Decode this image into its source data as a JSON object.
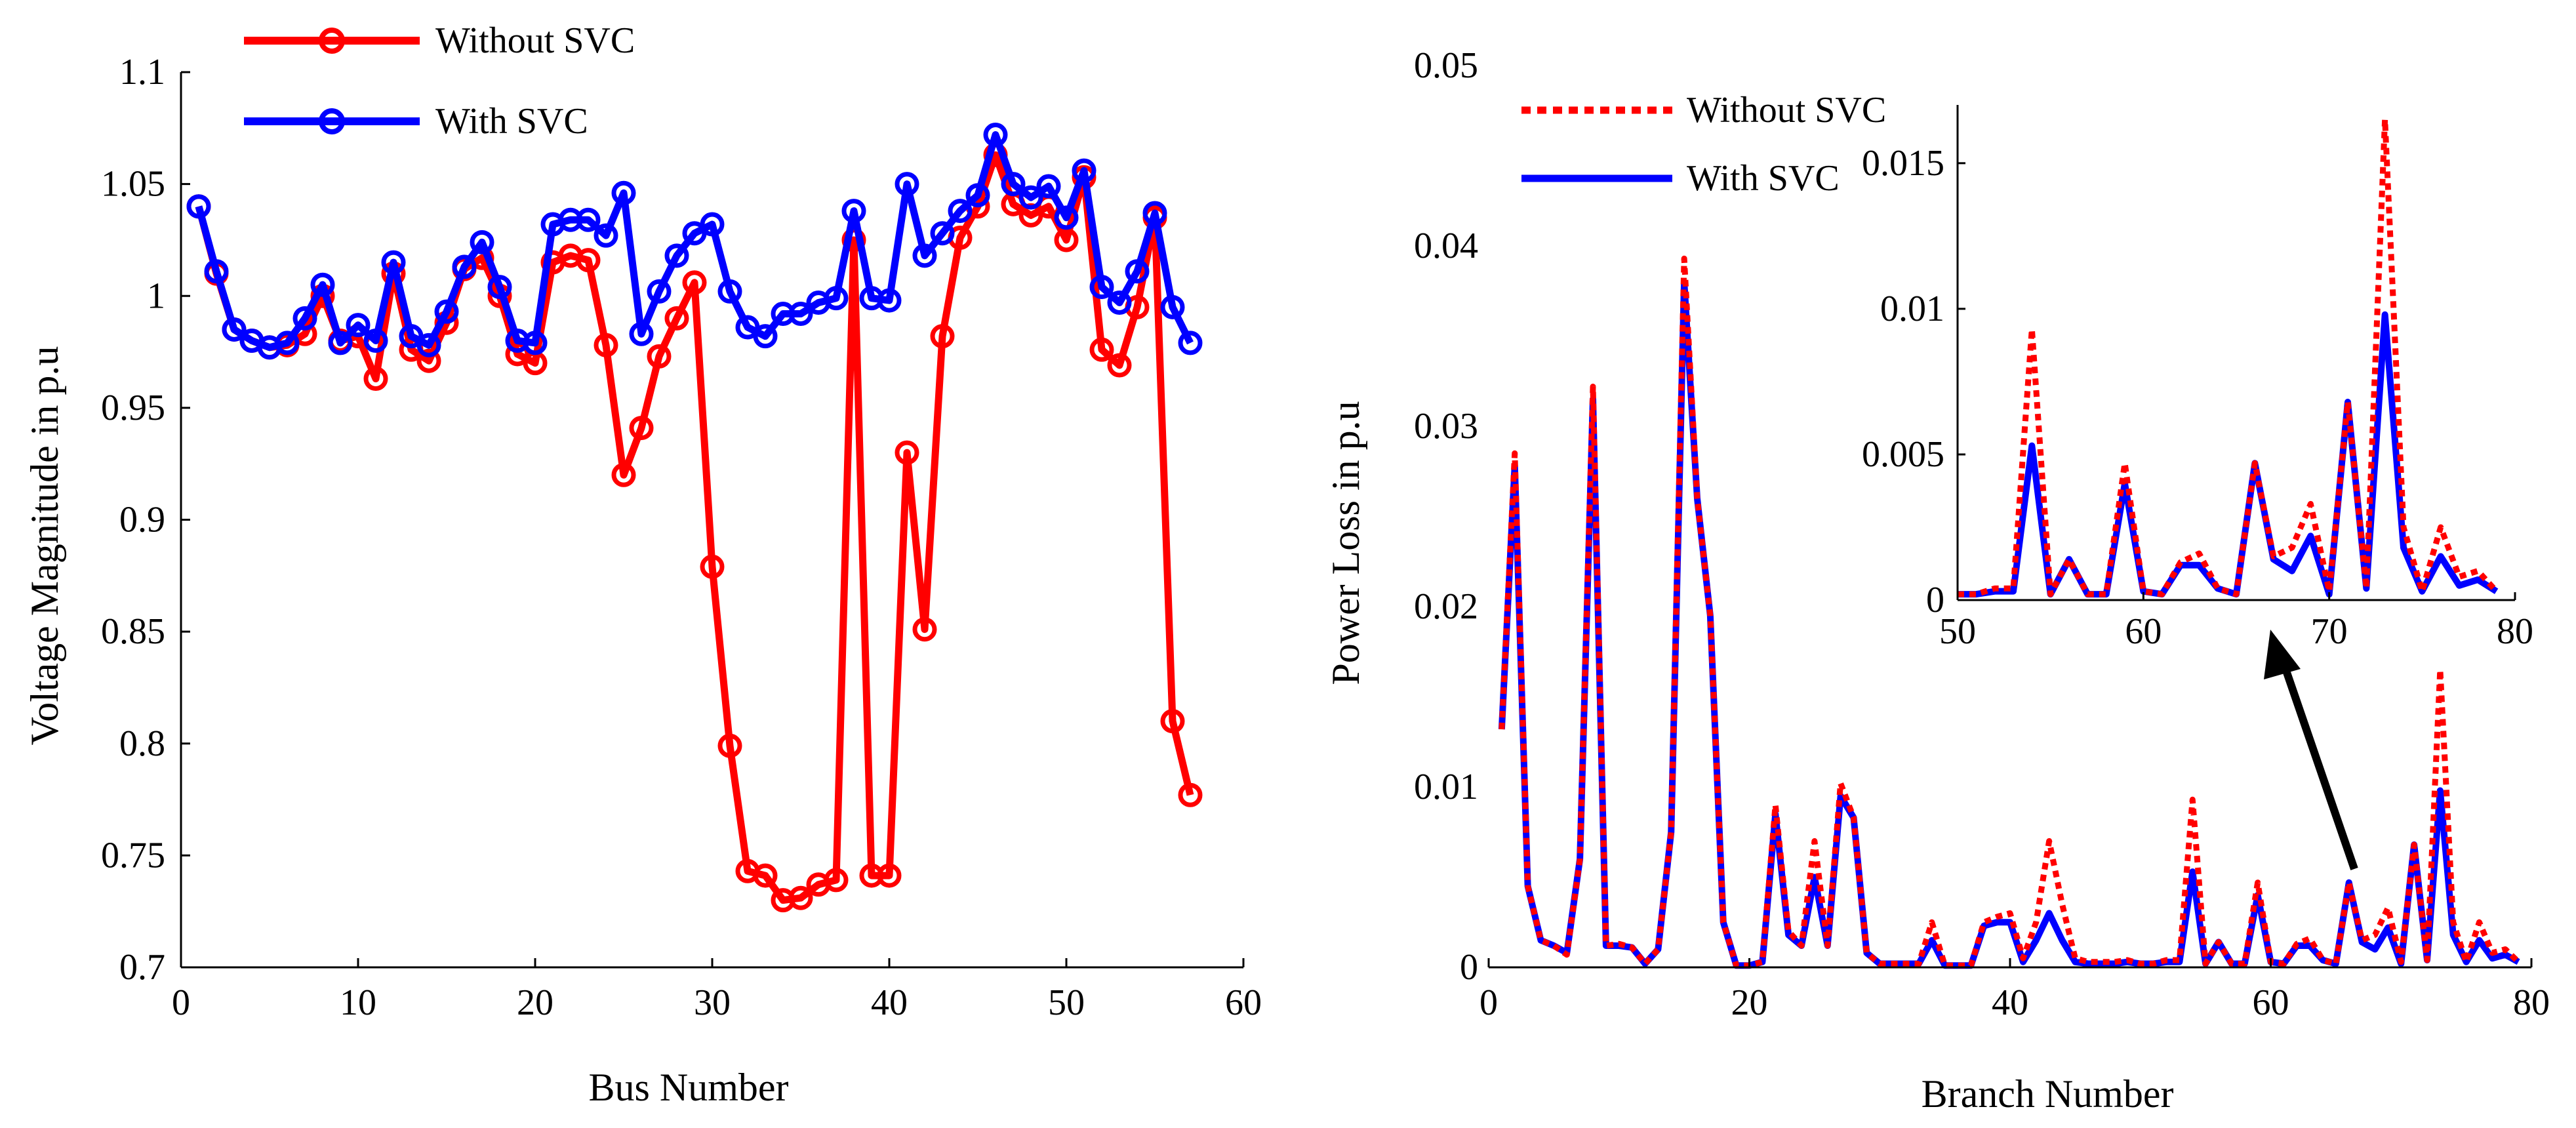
{
  "chart_data": [
    {
      "type": "line",
      "title": "",
      "xlabel": "Bus Number",
      "ylabel": "Voltage Magnitude in p.u",
      "xlim": [
        0,
        60
      ],
      "ylim": [
        0.7,
        1.1
      ],
      "xticks": [
        0,
        10,
        20,
        30,
        40,
        50,
        60
      ],
      "xtick_labels": [
        "0",
        "10",
        "20",
        "30",
        "40",
        "50",
        "60"
      ],
      "yticks": [
        0.7,
        0.75,
        0.8,
        0.85,
        0.9,
        0.95,
        1.0,
        1.05,
        1.1
      ],
      "ytick_labels": [
        "0.7",
        "0.75",
        "0.8",
        "0.85",
        "0.9",
        "0.95",
        "1",
        "1.05",
        "1.1"
      ],
      "legend_position": "top-left-outside",
      "x": [
        1,
        2,
        3,
        4,
        5,
        6,
        7,
        8,
        9,
        10,
        11,
        12,
        13,
        14,
        15,
        16,
        17,
        18,
        19,
        20,
        21,
        22,
        23,
        24,
        25,
        26,
        27,
        28,
        29,
        30,
        31,
        32,
        33,
        34,
        35,
        36,
        37,
        38,
        39,
        40,
        41,
        42,
        43,
        44,
        45,
        46,
        47,
        48,
        49,
        50,
        51,
        52,
        53,
        54,
        55,
        56,
        57
      ],
      "series": [
        {
          "name": "Without SVC",
          "color": "#ff0000",
          "marker": "circle",
          "values": [
            1.04,
            1.01,
            0.985,
            0.98,
            0.977,
            0.978,
            0.983,
            1.0,
            0.98,
            0.982,
            0.963,
            1.01,
            0.976,
            0.971,
            0.988,
            1.012,
            1.017,
            1.0,
            0.974,
            0.97,
            1.015,
            1.018,
            1.016,
            0.978,
            0.92,
            0.941,
            0.973,
            0.99,
            1.006,
            0.879,
            0.799,
            0.743,
            0.741,
            0.73,
            0.731,
            0.737,
            0.739,
            1.025,
            0.741,
            0.741,
            0.93,
            0.851,
            0.982,
            1.026,
            1.04,
            1.063,
            1.041,
            1.036,
            1.04,
            1.025,
            1.053,
            0.976,
            0.969,
            0.995,
            1.035,
            0.81,
            0.777
          ]
        },
        {
          "name": "With SVC",
          "color": "#0000ff",
          "marker": "circle",
          "values": [
            1.04,
            1.011,
            0.985,
            0.98,
            0.977,
            0.979,
            0.99,
            1.005,
            0.979,
            0.987,
            0.98,
            1.015,
            0.982,
            0.978,
            0.993,
            1.013,
            1.024,
            1.004,
            0.98,
            0.979,
            1.032,
            1.034,
            1.034,
            1.027,
            1.046,
            0.983,
            1.002,
            1.018,
            1.028,
            1.032,
            1.002,
            0.986,
            0.982,
            0.992,
            0.992,
            0.997,
            0.999,
            1.038,
            0.999,
            0.998,
            1.05,
            1.018,
            1.028,
            1.038,
            1.045,
            1.072,
            1.05,
            1.044,
            1.049,
            1.035,
            1.056,
            1.004,
            0.997,
            1.011,
            1.037,
            0.995,
            0.979
          ]
        }
      ]
    },
    {
      "type": "line",
      "title": "",
      "xlabel": "Branch Number",
      "ylabel": "Power Loss in p.u",
      "xlim": [
        0,
        80
      ],
      "ylim": [
        0,
        0.05
      ],
      "xticks": [
        0,
        20,
        40,
        60,
        80
      ],
      "xtick_labels": [
        "0",
        "20",
        "40",
        "60",
        "80"
      ],
      "yticks": [
        0,
        0.01,
        0.02,
        0.03,
        0.04,
        0.05
      ],
      "ytick_labels": [
        "0",
        "0.01",
        "0.02",
        "0.03",
        "0.04",
        "0.05"
      ],
      "legend_position": "top-left",
      "x": [
        1,
        2,
        3,
        4,
        5,
        6,
        7,
        8,
        9,
        10,
        11,
        12,
        13,
        14,
        15,
        16,
        17,
        18,
        19,
        20,
        21,
        22,
        23,
        24,
        25,
        26,
        27,
        28,
        29,
        30,
        31,
        32,
        33,
        34,
        35,
        36,
        37,
        38,
        39,
        40,
        41,
        42,
        43,
        44,
        45,
        46,
        47,
        48,
        49,
        50,
        51,
        52,
        53,
        54,
        55,
        56,
        57,
        58,
        59,
        60,
        61,
        62,
        63,
        64,
        65,
        66,
        67,
        68,
        69,
        70,
        71,
        72,
        73,
        74,
        75,
        76,
        77,
        78,
        79
      ],
      "series": [
        {
          "name": "Without SVC",
          "color": "#ff0000",
          "style": "dotted",
          "values": [
            0.0132,
            0.0285,
            0.0045,
            0.0015,
            0.0012,
            0.0007,
            0.006,
            0.0322,
            0.0012,
            0.0013,
            0.0011,
            0.0002,
            0.001,
            0.0075,
            0.0393,
            0.026,
            0.0195,
            0.0025,
            0.0001,
            0.0001,
            0.0003,
            0.009,
            0.002,
            0.0012,
            0.007,
            0.0012,
            0.0102,
            0.0083,
            0.0008,
            0.0002,
            0.0002,
            0.0002,
            0.0002,
            0.0025,
            0.0001,
            0.0001,
            0.0001,
            0.0025,
            0.0028,
            0.003,
            0.0005,
            0.0025,
            0.007,
            0.0035,
            0.0005,
            0.0003,
            0.0003,
            0.0003,
            0.0004,
            0.0002,
            0.0002,
            0.0004,
            0.0004,
            0.0093,
            0.0002,
            0.0014,
            0.0002,
            0.0002,
            0.0047,
            0.0003,
            0.0002,
            0.0013,
            0.0016,
            0.0004,
            0.0002,
            0.0047,
            0.0015,
            0.0018,
            0.0033,
            0.0003,
            0.0068,
            0.0004,
            0.0165,
            0.0025,
            0.0003,
            0.0025,
            0.0008,
            0.001,
            0.0003
          ]
        },
        {
          "name": "With SVC",
          "color": "#0000ff",
          "style": "solid",
          "values": [
            0.0132,
            0.0278,
            0.0045,
            0.0015,
            0.0012,
            0.0008,
            0.006,
            0.0315,
            0.0012,
            0.0012,
            0.0011,
            0.0002,
            0.001,
            0.0075,
            0.038,
            0.026,
            0.0195,
            0.0025,
            0.0001,
            0.0001,
            0.0003,
            0.0085,
            0.0018,
            0.0012,
            0.005,
            0.0012,
            0.0095,
            0.0083,
            0.0008,
            0.0002,
            0.0002,
            0.0002,
            0.0002,
            0.0015,
            0.0001,
            0.0001,
            0.0001,
            0.0023,
            0.0025,
            0.0025,
            0.0003,
            0.0015,
            0.003,
            0.0015,
            0.0003,
            0.0002,
            0.0002,
            0.0002,
            0.0003,
            0.0002,
            0.0002,
            0.0003,
            0.0003,
            0.0053,
            0.0002,
            0.0014,
            0.0002,
            0.0002,
            0.004,
            0.0003,
            0.0002,
            0.0012,
            0.0012,
            0.0004,
            0.0002,
            0.0047,
            0.0014,
            0.001,
            0.0022,
            0.0002,
            0.0068,
            0.0004,
            0.0098,
            0.0018,
            0.0003,
            0.0015,
            0.0005,
            0.0007,
            0.0003
          ]
        }
      ],
      "inset": {
        "xlim": [
          50,
          80
        ],
        "ylim": [
          0,
          0.017
        ],
        "xticks": [
          50,
          60,
          70,
          80
        ],
        "xtick_labels": [
          "50",
          "60",
          "70",
          "80"
        ],
        "yticks": [
          0,
          0.005,
          0.01,
          0.015
        ],
        "ytick_labels": [
          "0",
          "0.005",
          "0.01",
          "0.015"
        ],
        "x_range": [
          50,
          79
        ]
      }
    }
  ]
}
